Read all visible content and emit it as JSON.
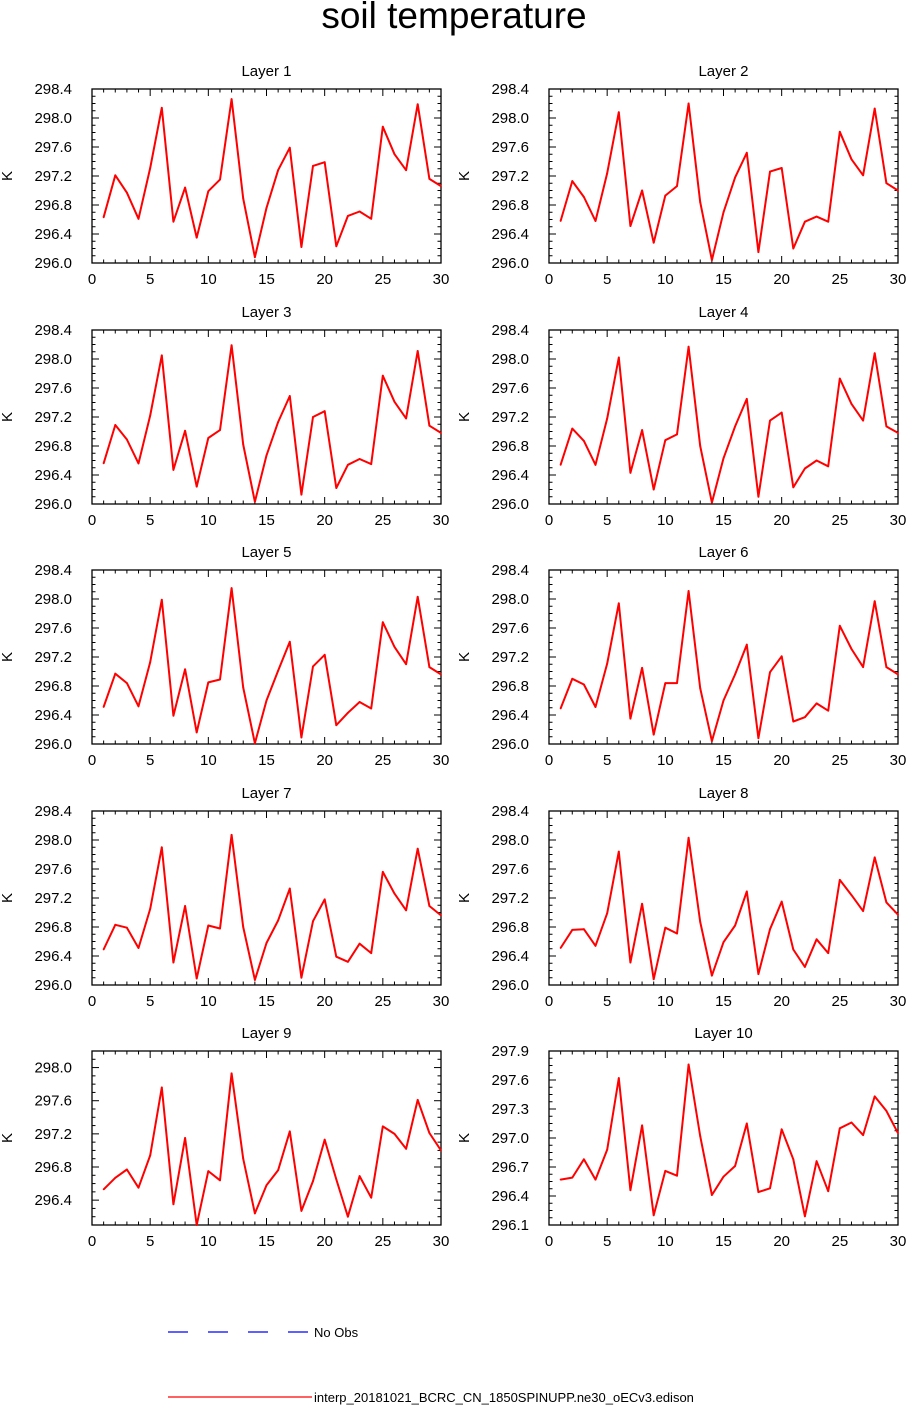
{
  "title": "soil temperature",
  "colors": {
    "model": "#ff0000",
    "obs": "#0000ff",
    "axis": "#000000"
  },
  "legend": {
    "obs_label": "No Obs",
    "model_label": "interp_20181021_BCRC_CN_1850SPINUPP.ne30_oECv3.edison"
  },
  "chart_data": [
    {
      "type": "line",
      "title": "Layer 1",
      "xlabel": "",
      "ylabel": "K",
      "xlim": [
        0,
        30
      ],
      "ylim": [
        296.0,
        298.4
      ],
      "xticks": [
        0,
        5,
        10,
        15,
        20,
        25,
        30
      ],
      "yticks": [
        296.0,
        296.4,
        296.8,
        297.2,
        297.6,
        298.0,
        298.4
      ],
      "ydec": 1,
      "x": [
        1,
        2,
        3,
        4,
        5,
        6,
        7,
        8,
        9,
        10,
        11,
        12,
        13,
        14,
        15,
        16,
        17,
        18,
        19,
        20,
        21,
        22,
        23,
        24,
        25,
        26,
        27,
        28,
        29,
        30
      ],
      "series": [
        {
          "name": "interp_20181021_BCRC_CN_1850SPINUPP.ne30_oECv3.edison",
          "values": [
            296.63,
            297.21,
            296.97,
            296.61,
            297.31,
            298.14,
            296.57,
            297.04,
            296.35,
            296.99,
            297.15,
            298.26,
            296.89,
            296.08,
            296.76,
            297.28,
            297.59,
            296.22,
            297.34,
            297.39,
            296.23,
            296.65,
            296.71,
            296.61,
            297.88,
            297.5,
            297.28,
            298.19,
            297.16,
            297.06
          ]
        }
      ]
    },
    {
      "type": "line",
      "title": "Layer 2",
      "xlabel": "",
      "ylabel": "K",
      "xlim": [
        0,
        30
      ],
      "ylim": [
        296.0,
        298.4
      ],
      "xticks": [
        0,
        5,
        10,
        15,
        20,
        25,
        30
      ],
      "yticks": [
        296.0,
        296.4,
        296.8,
        297.2,
        297.6,
        298.0,
        298.4
      ],
      "ydec": 1,
      "x": [
        1,
        2,
        3,
        4,
        5,
        6,
        7,
        8,
        9,
        10,
        11,
        12,
        13,
        14,
        15,
        16,
        17,
        18,
        19,
        20,
        21,
        22,
        23,
        24,
        25,
        26,
        27,
        28,
        29,
        30
      ],
      "series": [
        {
          "name": "interp_20181021_BCRC_CN_1850SPINUPP.ne30_oECv3.edison",
          "values": [
            296.58,
            297.13,
            296.91,
            296.58,
            297.24,
            298.08,
            296.51,
            297.0,
            296.28,
            296.93,
            297.06,
            298.2,
            296.84,
            296.04,
            296.7,
            297.18,
            297.52,
            296.15,
            297.26,
            297.31,
            296.2,
            296.57,
            296.64,
            296.57,
            297.81,
            297.43,
            297.21,
            298.13,
            297.1,
            297.0
          ]
        }
      ]
    },
    {
      "type": "line",
      "title": "Layer 3",
      "xlabel": "",
      "ylabel": "K",
      "xlim": [
        0,
        30
      ],
      "ylim": [
        296.0,
        298.4
      ],
      "xticks": [
        0,
        5,
        10,
        15,
        20,
        25,
        30
      ],
      "yticks": [
        296.0,
        296.4,
        296.8,
        297.2,
        297.6,
        298.0,
        298.4
      ],
      "ydec": 1,
      "x": [
        1,
        2,
        3,
        4,
        5,
        6,
        7,
        8,
        9,
        10,
        11,
        12,
        13,
        14,
        15,
        16,
        17,
        18,
        19,
        20,
        21,
        22,
        23,
        24,
        25,
        26,
        27,
        28,
        29,
        30
      ],
      "series": [
        {
          "name": "interp_20181021_BCRC_CN_1850SPINUPP.ne30_oECv3.edison",
          "values": [
            296.56,
            297.09,
            296.89,
            296.56,
            297.22,
            298.05,
            296.47,
            297.01,
            296.24,
            296.91,
            297.02,
            298.19,
            296.82,
            296.03,
            296.67,
            297.13,
            297.49,
            296.13,
            297.2,
            297.28,
            296.22,
            296.54,
            296.62,
            296.55,
            297.77,
            297.41,
            297.18,
            298.11,
            297.08,
            296.98
          ]
        }
      ]
    },
    {
      "type": "line",
      "title": "Layer 4",
      "xlabel": "",
      "ylabel": "K",
      "xlim": [
        0,
        30
      ],
      "ylim": [
        296.0,
        298.4
      ],
      "xticks": [
        0,
        5,
        10,
        15,
        20,
        25,
        30
      ],
      "yticks": [
        296.0,
        296.4,
        296.8,
        297.2,
        297.6,
        298.0,
        298.4
      ],
      "ydec": 1,
      "x": [
        1,
        2,
        3,
        4,
        5,
        6,
        7,
        8,
        9,
        10,
        11,
        12,
        13,
        14,
        15,
        16,
        17,
        18,
        19,
        20,
        21,
        22,
        23,
        24,
        25,
        26,
        27,
        28,
        29,
        30
      ],
      "series": [
        {
          "name": "interp_20181021_BCRC_CN_1850SPINUPP.ne30_oECv3.edison",
          "values": [
            296.54,
            297.04,
            296.87,
            296.54,
            297.18,
            298.02,
            296.43,
            297.02,
            296.2,
            296.88,
            296.96,
            298.17,
            296.8,
            296.02,
            296.63,
            297.07,
            297.45,
            296.1,
            297.15,
            297.26,
            296.23,
            296.49,
            296.6,
            296.52,
            297.73,
            297.38,
            297.15,
            298.08,
            297.07,
            296.98
          ]
        }
      ]
    },
    {
      "type": "line",
      "title": "Layer 5",
      "xlabel": "",
      "ylabel": "K",
      "xlim": [
        0,
        30
      ],
      "ylim": [
        296.0,
        298.4
      ],
      "xticks": [
        0,
        5,
        10,
        15,
        20,
        25,
        30
      ],
      "yticks": [
        296.0,
        296.4,
        296.8,
        297.2,
        297.6,
        298.0,
        298.4
      ],
      "ydec": 1,
      "x": [
        1,
        2,
        3,
        4,
        5,
        6,
        7,
        8,
        9,
        10,
        11,
        12,
        13,
        14,
        15,
        16,
        17,
        18,
        19,
        20,
        21,
        22,
        23,
        24,
        25,
        26,
        27,
        28,
        29,
        30
      ],
      "series": [
        {
          "name": "interp_20181021_BCRC_CN_1850SPINUPP.ne30_oECv3.edison",
          "values": [
            296.51,
            296.97,
            296.84,
            296.52,
            297.13,
            297.99,
            296.39,
            297.03,
            296.16,
            296.85,
            296.89,
            298.15,
            296.78,
            296.01,
            296.6,
            297.01,
            297.41,
            296.09,
            297.07,
            297.23,
            296.26,
            296.43,
            296.58,
            296.49,
            297.68,
            297.34,
            297.1,
            298.03,
            297.06,
            296.96
          ]
        }
      ]
    },
    {
      "type": "line",
      "title": "Layer 6",
      "xlabel": "",
      "ylabel": "K",
      "xlim": [
        0,
        30
      ],
      "ylim": [
        296.0,
        298.4
      ],
      "xticks": [
        0,
        5,
        10,
        15,
        20,
        25,
        30
      ],
      "yticks": [
        296.0,
        296.4,
        296.8,
        297.2,
        297.6,
        298.0,
        298.4
      ],
      "ydec": 1,
      "x": [
        1,
        2,
        3,
        4,
        5,
        6,
        7,
        8,
        9,
        10,
        11,
        12,
        13,
        14,
        15,
        16,
        17,
        18,
        19,
        20,
        21,
        22,
        23,
        24,
        25,
        26,
        27,
        28,
        29,
        30
      ],
      "series": [
        {
          "name": "interp_20181021_BCRC_CN_1850SPINUPP.ne30_oECv3.edison",
          "values": [
            296.49,
            296.9,
            296.82,
            296.51,
            297.11,
            297.94,
            296.35,
            297.05,
            296.13,
            296.84,
            296.84,
            298.11,
            296.77,
            296.04,
            296.6,
            296.96,
            297.37,
            296.08,
            296.99,
            297.21,
            296.31,
            296.37,
            296.56,
            296.46,
            297.63,
            297.31,
            297.06,
            297.97,
            297.06,
            296.96
          ]
        }
      ]
    },
    {
      "type": "line",
      "title": "Layer 7",
      "xlabel": "",
      "ylabel": "K",
      "xlim": [
        0,
        30
      ],
      "ylim": [
        296.0,
        298.4
      ],
      "xticks": [
        0,
        5,
        10,
        15,
        20,
        25,
        30
      ],
      "yticks": [
        296.0,
        296.4,
        296.8,
        297.2,
        297.6,
        298.0,
        298.4
      ],
      "ydec": 1,
      "x": [
        1,
        2,
        3,
        4,
        5,
        6,
        7,
        8,
        9,
        10,
        11,
        12,
        13,
        14,
        15,
        16,
        17,
        18,
        19,
        20,
        21,
        22,
        23,
        24,
        25,
        26,
        27,
        28,
        29,
        30
      ],
      "series": [
        {
          "name": "interp_20181021_BCRC_CN_1850SPINUPP.ne30_oECv3.edison",
          "values": [
            296.49,
            296.83,
            296.79,
            296.51,
            297.05,
            297.9,
            296.31,
            297.09,
            296.09,
            296.82,
            296.78,
            298.07,
            296.8,
            296.07,
            296.58,
            296.89,
            297.33,
            296.1,
            296.88,
            297.18,
            296.39,
            296.32,
            296.57,
            296.44,
            297.56,
            297.26,
            297.03,
            297.88,
            297.09,
            296.96
          ]
        }
      ]
    },
    {
      "type": "line",
      "title": "Layer 8",
      "xlabel": "",
      "ylabel": "K",
      "xlim": [
        0,
        30
      ],
      "ylim": [
        296.0,
        298.4
      ],
      "xticks": [
        0,
        5,
        10,
        15,
        20,
        25,
        30
      ],
      "yticks": [
        296.0,
        296.4,
        296.8,
        297.2,
        297.6,
        298.0,
        298.4
      ],
      "ydec": 1,
      "x": [
        1,
        2,
        3,
        4,
        5,
        6,
        7,
        8,
        9,
        10,
        11,
        12,
        13,
        14,
        15,
        16,
        17,
        18,
        19,
        20,
        21,
        22,
        23,
        24,
        25,
        26,
        27,
        28,
        29,
        30
      ],
      "series": [
        {
          "name": "interp_20181021_BCRC_CN_1850SPINUPP.ne30_oECv3.edison",
          "values": [
            296.51,
            296.76,
            296.77,
            296.54,
            296.99,
            297.84,
            296.31,
            297.12,
            296.08,
            296.79,
            296.71,
            298.03,
            296.87,
            296.13,
            296.59,
            296.82,
            297.29,
            296.15,
            296.77,
            297.15,
            296.49,
            296.25,
            296.63,
            296.44,
            297.45,
            297.24,
            297.02,
            297.76,
            297.14,
            296.97
          ]
        }
      ]
    },
    {
      "type": "line",
      "title": "Layer 9",
      "xlabel": "",
      "ylabel": "K",
      "xlim": [
        0,
        30
      ],
      "ylim": [
        296.1,
        298.2
      ],
      "xticks": [
        0,
        5,
        10,
        15,
        20,
        25,
        30
      ],
      "yticks": [
        296.4,
        296.8,
        297.2,
        297.6,
        298.0
      ],
      "ydec": 1,
      "x": [
        1,
        2,
        3,
        4,
        5,
        6,
        7,
        8,
        9,
        10,
        11,
        12,
        13,
        14,
        15,
        16,
        17,
        18,
        19,
        20,
        21,
        22,
        23,
        24,
        25,
        26,
        27,
        28,
        29,
        30
      ],
      "series": [
        {
          "name": "interp_20181021_BCRC_CN_1850SPINUPP.ne30_oECv3.edison",
          "values": [
            296.53,
            296.67,
            296.77,
            296.55,
            296.94,
            297.76,
            296.35,
            297.15,
            296.1,
            296.75,
            296.64,
            297.93,
            296.9,
            296.24,
            296.58,
            296.76,
            297.23,
            296.27,
            296.63,
            297.13,
            296.65,
            296.2,
            296.69,
            296.43,
            297.29,
            297.2,
            297.02,
            297.61,
            297.21,
            297.0
          ]
        }
      ]
    },
    {
      "type": "line",
      "title": "Layer 10",
      "xlabel": "",
      "ylabel": "K",
      "xlim": [
        0,
        30
      ],
      "ylim": [
        296.1,
        297.9
      ],
      "xticks": [
        0,
        5,
        10,
        15,
        20,
        25,
        30
      ],
      "yticks": [
        296.1,
        296.4,
        296.7,
        297.0,
        297.3,
        297.6,
        297.9
      ],
      "ydec": 1,
      "x": [
        1,
        2,
        3,
        4,
        5,
        6,
        7,
        8,
        9,
        10,
        11,
        12,
        13,
        14,
        15,
        16,
        17,
        18,
        19,
        20,
        21,
        22,
        23,
        24,
        25,
        26,
        27,
        28,
        29,
        30
      ],
      "series": [
        {
          "name": "interp_20181021_BCRC_CN_1850SPINUPP.ne30_oECv3.edison",
          "values": [
            296.57,
            296.59,
            296.78,
            296.57,
            296.88,
            297.62,
            296.46,
            297.13,
            296.2,
            296.66,
            296.61,
            297.76,
            297.02,
            296.41,
            296.6,
            296.71,
            297.15,
            296.44,
            296.48,
            297.09,
            296.78,
            296.19,
            296.76,
            296.45,
            297.1,
            297.16,
            297.03,
            297.43,
            297.28,
            297.05
          ]
        }
      ]
    }
  ]
}
